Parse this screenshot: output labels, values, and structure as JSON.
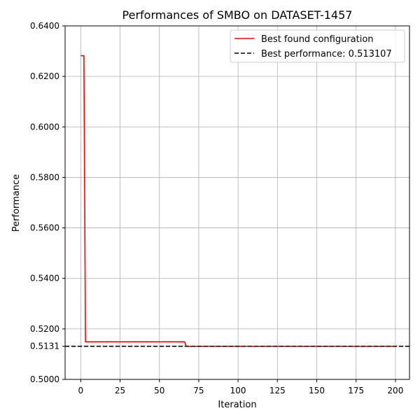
{
  "chart_data": {
    "type": "line",
    "title": "Performances of SMBO on DATASET-1457",
    "xlabel": "Iteration",
    "ylabel": "Performance",
    "xlim": [
      -9.95,
      208.95
    ],
    "ylim": [
      0.5,
      0.64
    ],
    "x_ticks": [
      0,
      25,
      50,
      75,
      100,
      125,
      150,
      175,
      200
    ],
    "y_ticks": [
      0.5,
      0.5131,
      0.52,
      0.54,
      0.56,
      0.58,
      0.6,
      0.62,
      0.64
    ],
    "y_tick_labels": [
      "0.5000",
      "0.5131",
      "0.5200",
      "0.5400",
      "0.5600",
      "0.5800",
      "0.6000",
      "0.6200",
      "0.6400"
    ],
    "grid": true,
    "legend_position": "top-right",
    "series": [
      {
        "name": "Best found configuration",
        "color": "#ff0000",
        "style": "solid",
        "x": [
          0,
          2,
          3,
          66,
          67,
          199
        ],
        "y": [
          0.6282,
          0.6282,
          0.5149,
          0.5149,
          0.5131,
          0.5131
        ]
      },
      {
        "name": "Best performance: 0.513107",
        "color": "#000000",
        "style": "dashed",
        "hline": 0.513107
      }
    ]
  }
}
